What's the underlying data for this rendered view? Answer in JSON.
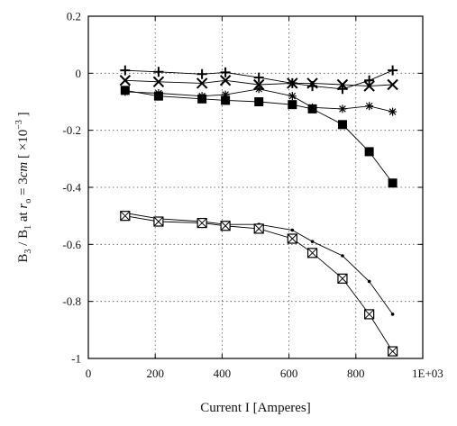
{
  "chart_data": {
    "type": "line",
    "title": "",
    "xlabel": "Current I [Amperes]",
    "ylabel_parts": {
      "b3": "B",
      "b3_sub": "3",
      "slash": " / ",
      "b1": "B",
      "b1_sub": "1",
      "at": " at ",
      "r": "r",
      "r_sub": "o",
      "eq": " = 3",
      "cm": "cm",
      "bracket_open": " [ ×10",
      "exp": "−3",
      "bracket_close": " ]"
    },
    "x_multiplier_label": "1E+03",
    "xlim": [
      0,
      1000
    ],
    "ylim": [
      -1,
      0.2
    ],
    "x_ticks": [
      0,
      200,
      400,
      600,
      800
    ],
    "x_tick_labels": [
      "0",
      "200",
      "400",
      "600",
      "800"
    ],
    "y_ticks": [
      0.2,
      0,
      -0.2,
      -0.4,
      -0.6,
      -0.8,
      -1
    ],
    "y_tick_labels": [
      "0.2",
      "0",
      "-0.2",
      "-0.4",
      "-0.6",
      "-0.8",
      "-1"
    ],
    "grid": true,
    "series": [
      {
        "marker": "plus",
        "x": [
          110,
          210,
          340,
          410,
          510,
          610,
          670,
          760,
          840,
          910
        ],
        "y": [
          0.01,
          0.005,
          -0.003,
          0.003,
          -0.015,
          -0.035,
          -0.045,
          -0.055,
          -0.025,
          0.01
        ]
      },
      {
        "marker": "x",
        "x": [
          110,
          210,
          340,
          410,
          510,
          610,
          670,
          760,
          840,
          910
        ],
        "y": [
          -0.025,
          -0.03,
          -0.035,
          -0.025,
          -0.04,
          -0.035,
          -0.035,
          -0.04,
          -0.045,
          -0.04
        ]
      },
      {
        "marker": "asterisk",
        "x": [
          110,
          210,
          340,
          410,
          510,
          610,
          670,
          760,
          840,
          910
        ],
        "y": [
          -0.065,
          -0.07,
          -0.08,
          -0.075,
          -0.055,
          -0.08,
          -0.12,
          -0.125,
          -0.115,
          -0.135
        ]
      },
      {
        "marker": "filled-square",
        "x": [
          110,
          210,
          340,
          410,
          510,
          610,
          670,
          760,
          840,
          910
        ],
        "y": [
          -0.06,
          -0.08,
          -0.09,
          -0.095,
          -0.1,
          -0.11,
          -0.125,
          -0.18,
          -0.275,
          -0.385
        ]
      },
      {
        "marker": "dot",
        "x": [
          110,
          210,
          340,
          410,
          510,
          610,
          670,
          760,
          840,
          910
        ],
        "y": [
          -0.49,
          -0.51,
          -0.52,
          -0.53,
          -0.53,
          -0.55,
          -0.59,
          -0.64,
          -0.73,
          -0.845
        ]
      },
      {
        "marker": "boxed-x",
        "x": [
          110,
          210,
          340,
          410,
          510,
          610,
          670,
          760,
          840,
          910
        ],
        "y": [
          -0.5,
          -0.52,
          -0.525,
          -0.535,
          -0.545,
          -0.58,
          -0.63,
          -0.72,
          -0.845,
          -0.975
        ]
      }
    ]
  }
}
